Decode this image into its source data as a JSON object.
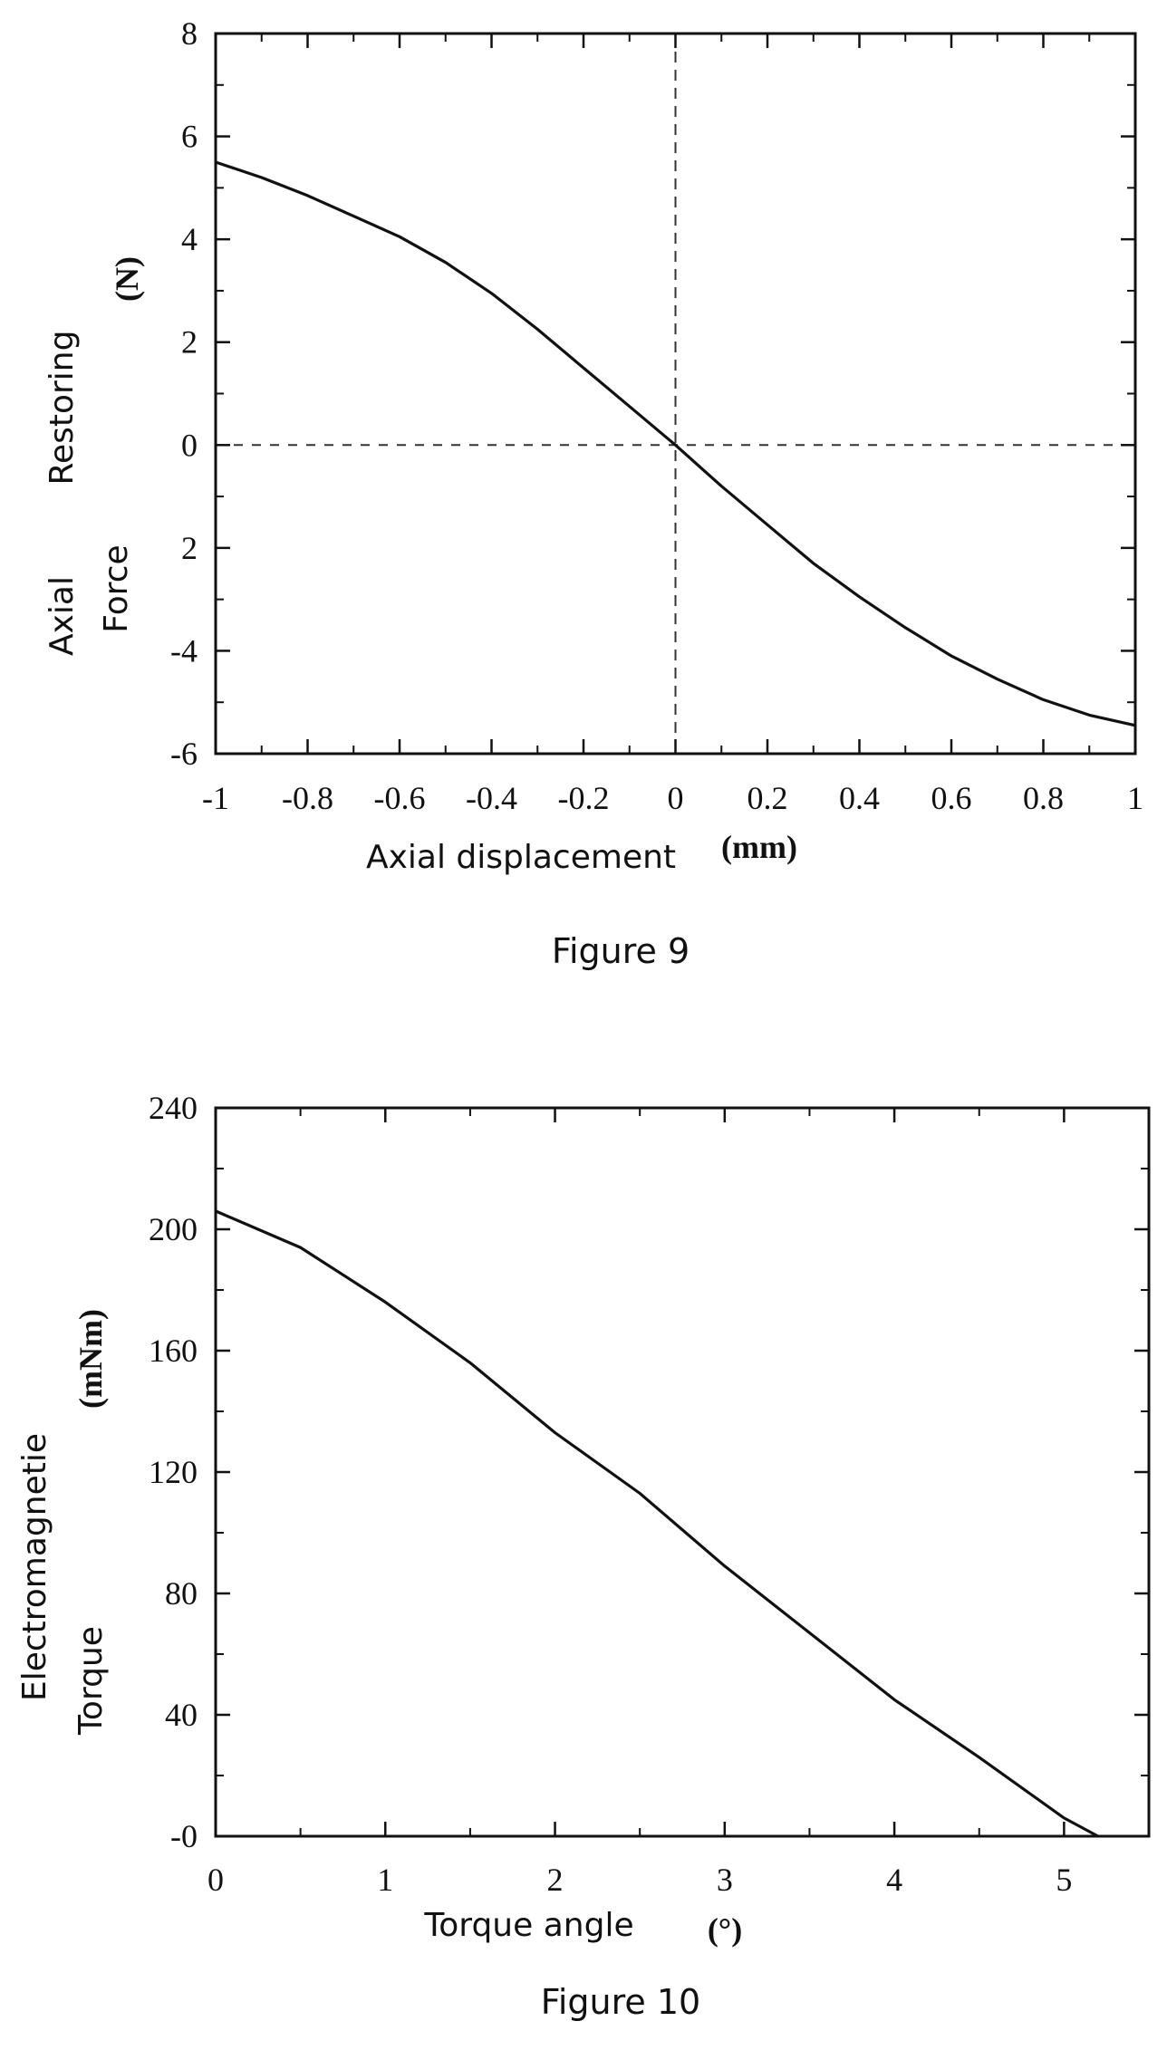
{
  "chart_data": [
    {
      "type": "line",
      "caption": "Figure 9",
      "xlabel": "Axial displacement",
      "xunit": "(mm)",
      "ylabel_lines": [
        "Axial",
        "Restoring",
        "Force"
      ],
      "yunit": "(N)",
      "xlim": [
        -1,
        1
      ],
      "ylim": [
        -6,
        8
      ],
      "x_ticks": [
        -1,
        -0.8,
        -0.6,
        -0.4,
        -0.2,
        0,
        0.2,
        0.4,
        0.6,
        0.8,
        1
      ],
      "x_tick_labels": [
        "-1",
        "-0.8",
        "-0.6",
        "-0.4",
        "-0.2",
        "0",
        "0.2",
        "0.4",
        "0.6",
        "0.8",
        "1"
      ],
      "y_ticks": [
        -6,
        -4,
        -2,
        0,
        2,
        4,
        6,
        8
      ],
      "y_tick_labels": [
        "-6",
        "-4",
        "2",
        "0",
        "2",
        "4",
        "6",
        "8"
      ],
      "reference_lines": {
        "x": 0,
        "y": 0
      },
      "series": [
        {
          "x": [
            -1,
            -0.9,
            -0.8,
            -0.7,
            -0.6,
            -0.5,
            -0.4,
            -0.3,
            -0.2,
            -0.1,
            0,
            0.1,
            0.2,
            0.3,
            0.4,
            0.5,
            0.6,
            0.7,
            0.8,
            0.9,
            1
          ],
          "y": [
            5.5,
            5.2,
            4.85,
            4.45,
            4.05,
            3.55,
            2.95,
            2.25,
            1.5,
            0.75,
            0,
            -0.8,
            -1.55,
            -2.3,
            -2.95,
            -3.55,
            -4.1,
            -4.55,
            -4.95,
            -5.25,
            -5.45
          ]
        }
      ]
    },
    {
      "type": "line",
      "caption": "Figure 10",
      "xlabel": "Torque angle",
      "xunit": "(°)",
      "ylabel_lines": [
        "Electromagnetie",
        "Torque"
      ],
      "yunit": "(mNm)",
      "xlim": [
        0,
        5.5
      ],
      "ylim": [
        0,
        240
      ],
      "x_ticks": [
        0,
        1,
        2,
        3,
        4,
        5
      ],
      "x_tick_labels": [
        "0",
        "1",
        "2",
        "3",
        "4",
        "5"
      ],
      "y_ticks": [
        0,
        40,
        80,
        120,
        160,
        200,
        240
      ],
      "y_tick_labels": [
        "-0",
        "40",
        "80",
        "120",
        "160",
        "200",
        "240"
      ],
      "series": [
        {
          "x": [
            0,
            0.5,
            1,
            1.5,
            2,
            2.5,
            3,
            3.5,
            4,
            4.5,
            5,
            5.2
          ],
          "y": [
            206,
            194,
            176,
            156,
            133,
            113,
            89,
            67,
            45,
            26,
            6,
            0
          ]
        }
      ]
    }
  ]
}
